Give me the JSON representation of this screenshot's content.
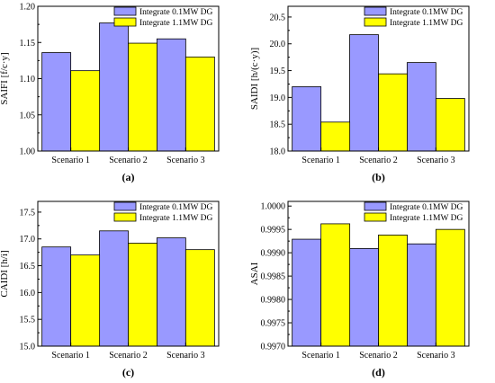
{
  "colors": {
    "series1": "#9999ff",
    "series2": "#ffff00",
    "edge": "#000000"
  },
  "chart_data": [
    {
      "type": "bar",
      "panel_label": "(a)",
      "ylabel": "SAIFI [f/c·y]",
      "categories": [
        "Scenario 1",
        "Scenario 2",
        "Scenario 3"
      ],
      "series": [
        {
          "name": "Integrate 0.1MW DG",
          "values": [
            1.136,
            1.177,
            1.155
          ]
        },
        {
          "name": "Integrate 1.1MW DG",
          "values": [
            1.111,
            1.149,
            1.13
          ]
        }
      ],
      "ylim": [
        1.0,
        1.2
      ],
      "yticks": [
        1.0,
        1.05,
        1.1,
        1.15,
        1.2
      ],
      "ytick_labels": [
        "1.00",
        "1.05",
        "1.10",
        "1.15",
        "1.20"
      ],
      "legend": "top-right",
      "grid": false
    },
    {
      "type": "bar",
      "panel_label": "(b)",
      "ylabel": "SAIDI [h/(c·y)]",
      "categories": [
        "Scenario 1",
        "Scenario 2",
        "Scenario 3"
      ],
      "series": [
        {
          "name": "Integrate 0.1MW DG",
          "values": [
            19.2,
            20.17,
            19.65
          ]
        },
        {
          "name": "Integrate 1.1MW DG",
          "values": [
            18.54,
            19.44,
            18.98
          ]
        }
      ],
      "ylim": [
        18.0,
        20.7
      ],
      "yticks": [
        18.0,
        18.5,
        19.0,
        19.5,
        20.0,
        20.5
      ],
      "ytick_labels": [
        "18.0",
        "18.5",
        "19.0",
        "19.5",
        "20.0",
        "20.5"
      ],
      "legend": "top-right",
      "grid": false
    },
    {
      "type": "bar",
      "panel_label": "(c)",
      "ylabel": "CAIDI [h/i]",
      "categories": [
        "Scenario 1",
        "Scenario 2",
        "Scenario 3"
      ],
      "series": [
        {
          "name": "Integrate 0.1MW DG",
          "values": [
            16.85,
            17.15,
            17.02
          ]
        },
        {
          "name": "Integrate 1.1MW DG",
          "values": [
            16.7,
            16.92,
            16.8
          ]
        }
      ],
      "ylim": [
        15.0,
        17.7
      ],
      "yticks": [
        15.0,
        15.5,
        16.0,
        16.5,
        17.0,
        17.5
      ],
      "ytick_labels": [
        "15.0",
        "15.5",
        "16.0",
        "16.5",
        "17.0",
        "17.5"
      ],
      "legend": "top-right",
      "grid": false
    },
    {
      "type": "bar",
      "panel_label": "(d)",
      "ylabel": "ASAI",
      "categories": [
        "Scenario 1",
        "Scenario 2",
        "Scenario 3"
      ],
      "series": [
        {
          "name": "Integrate 0.1MW DG",
          "values": [
            0.99929,
            0.99909,
            0.99919
          ]
        },
        {
          "name": "Integrate 1.1MW DG",
          "values": [
            0.99962,
            0.99938,
            0.9995
          ]
        }
      ],
      "ylim": [
        0.997,
        1.0001
      ],
      "yticks": [
        0.997,
        0.9975,
        0.998,
        0.9985,
        0.999,
        0.9995,
        1.0
      ],
      "ytick_labels": [
        "0.9970",
        "0.9975",
        "0.9980",
        "0.9985",
        "0.9990",
        "0.9995",
        "1.0000"
      ],
      "legend": "top-right",
      "grid": false
    }
  ]
}
